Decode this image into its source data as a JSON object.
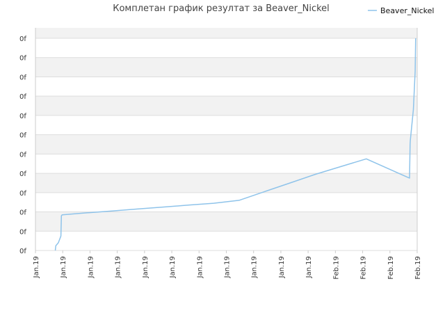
{
  "chart_data": {
    "type": "line",
    "title": "Комплетан график резултат за Beaver_Nickel",
    "xlabel": "",
    "ylabel": "",
    "legend": {
      "position": "top-right"
    },
    "grid": true,
    "x_tick_labels": [
      "Jan.19",
      "Jan.19",
      "Jan.19",
      "Jan.19",
      "Jan.19",
      "Jan.19",
      "Jan.19",
      "Jan.19",
      "Jan.19",
      "Jan.19",
      "Jan.19",
      "Feb.19",
      "Feb.19",
      "Feb.19",
      "Feb.19"
    ],
    "y_tick_labels": [
      "0f",
      "0f",
      "0f",
      "0f",
      "0f",
      "0f",
      "0f",
      "0f",
      "0f",
      "0f",
      "0f",
      "0f"
    ],
    "xlim": [
      0,
      15
    ],
    "ylim": [
      0,
      11
    ],
    "series": [
      {
        "name": "Beaver_Nickel",
        "color": "#8ec3ea",
        "points": [
          [
            0.78,
            0.0
          ],
          [
            0.8,
            0.25
          ],
          [
            0.9,
            0.4
          ],
          [
            1.0,
            0.75
          ],
          [
            1.02,
            1.8
          ],
          [
            1.05,
            1.85
          ],
          [
            2.0,
            1.95
          ],
          [
            3.0,
            2.05
          ],
          [
            4.0,
            2.15
          ],
          [
            5.0,
            2.25
          ],
          [
            6.0,
            2.35
          ],
          [
            7.0,
            2.45
          ],
          [
            8.0,
            2.6
          ],
          [
            9.0,
            3.05
          ],
          [
            10.0,
            3.5
          ],
          [
            11.0,
            3.95
          ],
          [
            12.0,
            4.35
          ],
          [
            13.0,
            4.75
          ],
          [
            14.7,
            3.75
          ],
          [
            14.72,
            5.5
          ],
          [
            14.73,
            5.7
          ],
          [
            14.85,
            7.3
          ],
          [
            14.92,
            9.3
          ],
          [
            14.94,
            11.0
          ]
        ]
      }
    ]
  },
  "colors": {
    "band": "#f2f2f2",
    "gridline": "#dddddd",
    "axis": "#cccccc",
    "line": "#8ec3ea"
  }
}
